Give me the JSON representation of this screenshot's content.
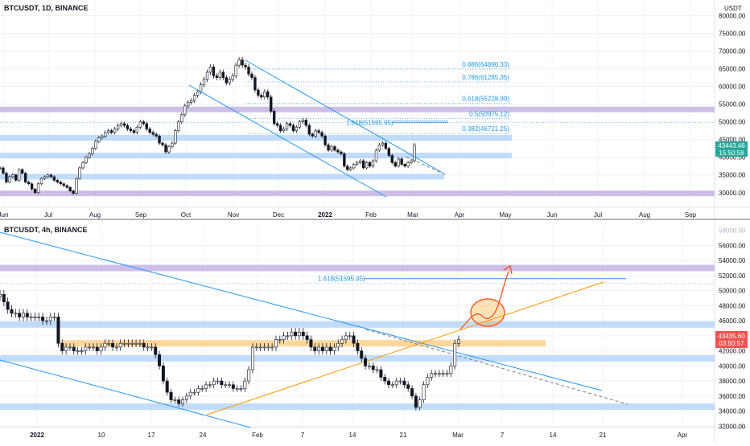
{
  "chart_data": [
    {
      "type": "candlestick",
      "title": "BTCUSDT, 1D, BINANCE",
      "currency": "USDT",
      "ylim": [
        27000,
        81000
      ],
      "y_ticks": [
        30000,
        35000,
        40000,
        45000,
        50000,
        55000,
        60000,
        65000,
        70000,
        75000,
        80000
      ],
      "y_tick_labels": [
        "30000.00",
        "35000.00",
        "40000.00",
        "45000.00",
        "50000.00",
        "55000.00",
        "60000.00",
        "65000.00",
        "70000.00",
        "75000.00",
        "80000.00"
      ],
      "x_labels": [
        "Jun",
        "Jul",
        "Aug",
        "Sep",
        "Oct",
        "Nov",
        "Dec",
        "2022",
        "Feb",
        "Mar",
        "Apr",
        "May",
        "Jun",
        "Jul",
        "Aug",
        "Sep"
      ],
      "x_label_bold": "2022",
      "last_price": "43443.46",
      "countdown": "15:50:58",
      "series": [
        {
          "values": [
            37000,
            35500,
            33000,
            34500,
            35000,
            33500,
            36500,
            35500,
            33000,
            32500,
            31000,
            30000,
            32500,
            34000,
            34500,
            35000,
            34500,
            33500,
            33000,
            32500,
            32000,
            31500,
            30500,
            29800,
            34000,
            37000,
            38500,
            40000,
            41000,
            42500,
            44500,
            45500,
            46000,
            47000,
            47500,
            47000,
            48000,
            49000,
            49500,
            49000,
            48000,
            47500,
            47000,
            48500,
            50000,
            49500,
            48000,
            47000,
            46500,
            46000,
            44000,
            43500,
            41500,
            43000,
            44000,
            47500,
            50000,
            52000,
            54500,
            55500,
            56000,
            57500,
            58500,
            60500,
            62000,
            64000,
            65500,
            63000,
            62500,
            64000,
            62500,
            61000,
            62000,
            63000,
            66000,
            67500,
            66000,
            65500,
            63500,
            62500,
            59000,
            57500,
            57000,
            58500,
            57000,
            53000,
            49500,
            49000,
            47500,
            48000,
            49500,
            49000,
            47500,
            48500,
            50000,
            50500,
            49000,
            46500,
            46000,
            47500,
            47000,
            46000,
            43500,
            42000,
            43000,
            42000,
            41500,
            41000,
            37500,
            36500,
            37000,
            38000,
            38500,
            39000,
            37000,
            38500,
            37500,
            39000,
            42000,
            43500,
            44000,
            42500,
            40500,
            38500,
            37500,
            39500,
            38000,
            37500,
            38500,
            39000,
            43500
          ]
        }
      ],
      "annotations": {
        "horizontal_levels": [
          {
            "value": 53500,
            "color": "purple"
          },
          {
            "value": 45500,
            "color": "blue"
          },
          {
            "value": 40500,
            "color": "blue"
          },
          {
            "value": 34500,
            "color": "blue"
          },
          {
            "value": 29800,
            "color": "purple"
          }
        ],
        "fib_levels": [
          {
            "label": "0.886(64890.33)",
            "value": 64890.33
          },
          {
            "label": "0.786(61285.35)",
            "value": 61285.35
          },
          {
            "label": "0.618(55228.99)",
            "value": 55228.99
          },
          {
            "label": "0.5(50975.12)",
            "value": 50975.12
          },
          {
            "label": "0.382(46721.25)",
            "value": 46721.25
          }
        ],
        "extension": {
          "label": "1.618(51595.95)",
          "value": 51595.95
        }
      },
      "legend": "none",
      "grid": "dotted"
    },
    {
      "type": "candlestick",
      "title": "BTCUSDT, 4h, BINANCE",
      "ylim": [
        31500,
        58500
      ],
      "y_ticks": [
        32000,
        34000,
        36000,
        38000,
        40000,
        42000,
        44000,
        46000,
        48000,
        50000,
        52000,
        54000,
        56000
      ],
      "y_tick_labels": [
        "32000.00",
        "34000.00",
        "36000.00",
        "38000.00",
        "40000.00",
        "42000.00",
        "44000.00",
        "46000.00",
        "48000.00",
        "50000.00",
        "52000.00",
        "54000.00",
        "56000.00"
      ],
      "top_partial_label": "58000.00",
      "x_labels": [
        "2022",
        "10",
        "17",
        "24",
        "Feb",
        "7",
        "14",
        "21",
        "Mar",
        "7",
        "14",
        "21",
        "Apr"
      ],
      "x_label_bold": "2022",
      "last_price": "43435.60",
      "countdown": "03:50:57",
      "series": [
        {
          "values": [
            49500,
            48500,
            47500,
            47000,
            47000,
            46500,
            47000,
            46500,
            46500,
            46500,
            46500,
            46000,
            46000,
            46500,
            46500,
            43000,
            42000,
            42500,
            42500,
            42000,
            42000,
            42000,
            42500,
            42500,
            42500,
            42000,
            42500,
            43000,
            43000,
            42500,
            42500,
            43000,
            43000,
            43000,
            43000,
            43000,
            43000,
            42500,
            42500,
            42500,
            41500,
            40000,
            38000,
            36500,
            35500,
            35500,
            35000,
            35500,
            36000,
            36500,
            36500,
            37000,
            37000,
            37500,
            37500,
            38000,
            38000,
            37500,
            37500,
            37500,
            37000,
            37000,
            37000,
            38000,
            39500,
            42500,
            42500,
            42500,
            42500,
            42500,
            42500,
            43500,
            43500,
            44000,
            44000,
            44500,
            44000,
            44500,
            44000,
            43500,
            42500,
            42000,
            42500,
            42000,
            42500,
            42000,
            42500,
            43000,
            43500,
            44000,
            44000,
            43000,
            42000,
            41000,
            40000,
            40000,
            39500,
            39500,
            38500,
            38000,
            37500,
            37500,
            38000,
            38000,
            37500,
            37000,
            36000,
            34500,
            35500,
            37500,
            38500,
            39000,
            39000,
            39000,
            39000,
            39000,
            40000,
            43000,
            43500
          ]
        }
      ],
      "annotations": {
        "horizontal_levels": [
          {
            "value": 53000,
            "color": "purple"
          },
          {
            "value": 45500,
            "color": "blue"
          },
          {
            "value": 43000,
            "color": "orange"
          },
          {
            "value": 41000,
            "color": "blue"
          },
          {
            "value": 34600,
            "color": "blue"
          }
        ],
        "extension": {
          "label": "1.618(51595.95)",
          "value": 51595.95
        },
        "projection": "arrow-up"
      },
      "legend": "none",
      "grid": "dotted"
    }
  ]
}
